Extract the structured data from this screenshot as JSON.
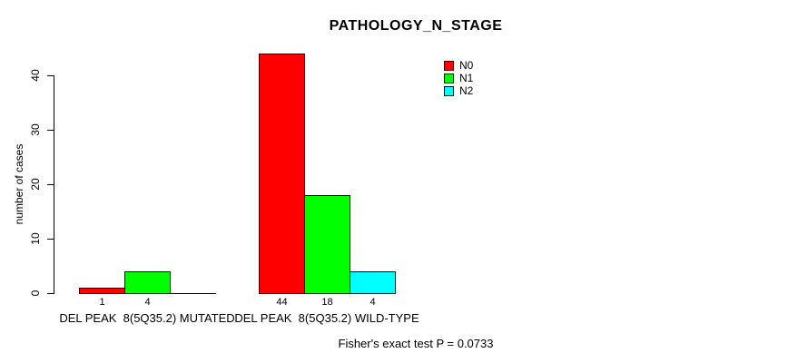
{
  "chart_data": {
    "type": "bar",
    "title": "PATHOLOGY_N_STAGE",
    "ylabel": "number of cases",
    "xlabel": "",
    "categories": [
      "DEL PEAK  8(5Q35.2) MUTATED",
      "DEL PEAK  8(5Q35.2) WILD-TYPE"
    ],
    "series": [
      {
        "name": "N0",
        "color": "#ff0000",
        "values": [
          1,
          44
        ]
      },
      {
        "name": "N1",
        "color": "#00ff00",
        "values": [
          4,
          18
        ]
      },
      {
        "name": "N2",
        "color": "#00ffff",
        "values": [
          0,
          4
        ]
      }
    ],
    "bar_value_labels": [
      [
        "1",
        "4",
        ""
      ],
      [
        "44",
        "18",
        "4"
      ]
    ],
    "yticks": [
      0,
      10,
      20,
      30,
      40
    ],
    "ylim": [
      0,
      44
    ],
    "grid": false,
    "legend_position": "top-right",
    "annotation": "Fisher's exact test P = 0.0733"
  },
  "colors": {
    "background": "#ffffff",
    "axis": "#000000",
    "bar_border": "#000000",
    "text": "#000000",
    "n0": "#ff0000",
    "n1": "#00ff00",
    "n2": "#00ffff"
  }
}
